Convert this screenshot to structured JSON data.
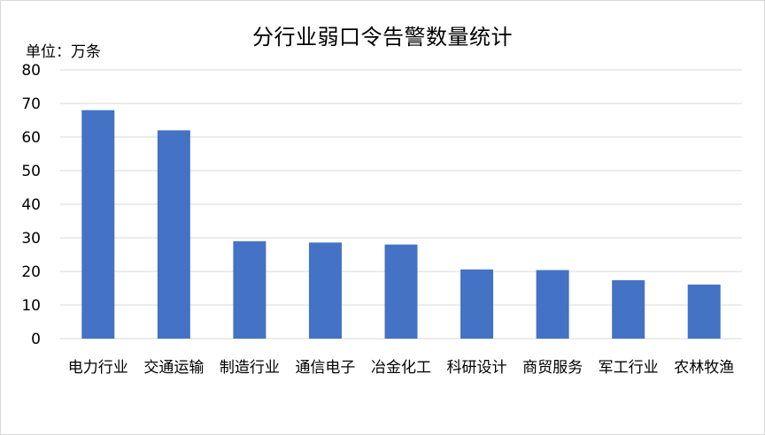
{
  "chart_data": {
    "type": "bar",
    "title": "分行业弱口令告警数量统计",
    "unit_label": "单位：万条",
    "categories": [
      "电力行业",
      "交通运输",
      "制造行业",
      "通信电子",
      "冶金化工",
      "科研设计",
      "商贸服务",
      "军工行业",
      "农林牧渔"
    ],
    "values": [
      68,
      62,
      29,
      28.6,
      28,
      20.6,
      20.4,
      17.4,
      16.1
    ],
    "ylim": [
      0,
      80
    ],
    "yticks": [
      0,
      10,
      20,
      30,
      40,
      50,
      60,
      70,
      80
    ],
    "grid": true,
    "legend": "none",
    "bar_color": "#4472c4",
    "grid_color": "#d9d9d9"
  }
}
